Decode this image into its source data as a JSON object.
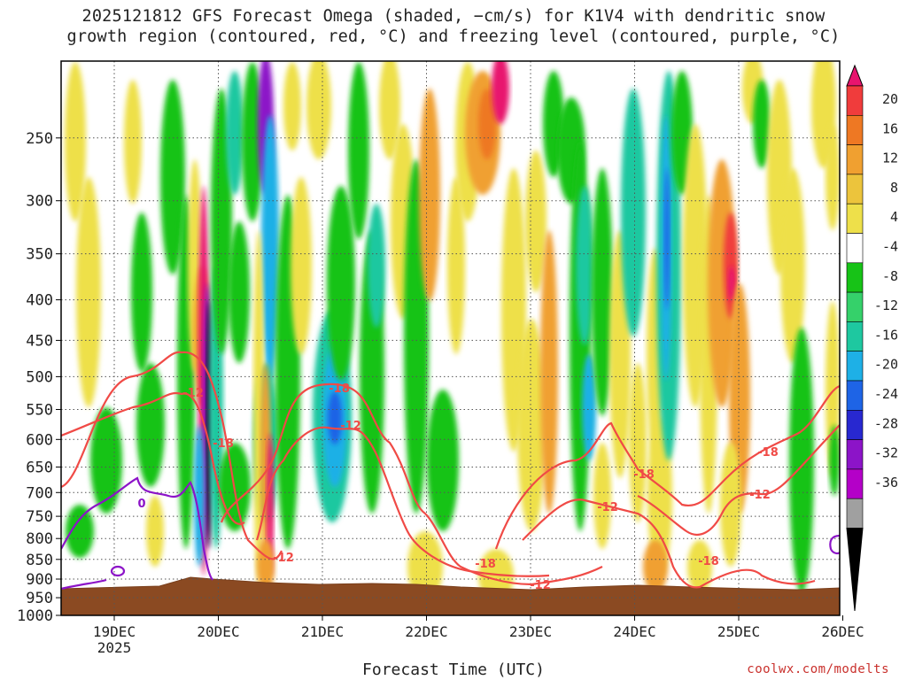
{
  "title_line1": "2025121812 GFS Forecast Omega (shaded, −cm/s) for K1V4 with dendritic snow",
  "title_line2": "growth region (contoured, red, °C) and freezing level (contoured, purple, °C)",
  "xlabel": "Forecast Time (UTC)",
  "credit": "coolwx.com/modelts",
  "chart_data": {
    "type": "heatmap",
    "yaxis": {
      "ticks": [
        250,
        300,
        350,
        400,
        450,
        500,
        550,
        600,
        650,
        700,
        750,
        800,
        850,
        900,
        950,
        1000
      ],
      "ylim": [
        1000,
        200
      ],
      "scale": "log"
    },
    "xaxis": {
      "ticks": [
        "19DEC\n2025",
        "20DEC",
        "21DEC",
        "22DEC",
        "23DEC",
        "24DEC",
        "25DEC",
        "26DEC"
      ]
    },
    "colorbar": {
      "labels": [
        "20",
        "16",
        "12",
        "8",
        "4",
        "-4",
        "-8",
        "-12",
        "-16",
        "-20",
        "-24",
        "-28",
        "-32",
        "-36"
      ],
      "colors": [
        "#e8146e",
        "#f03c3c",
        "#ee7823",
        "#f0a030",
        "#ecc43c",
        "#eee04a",
        "#ffffff",
        "#17c317",
        "#35d16a",
        "#1ec8a0",
        "#1eb0e6",
        "#1e64e6",
        "#2828d0",
        "#8c14c8",
        "#b400c8",
        "#a0a0a0",
        "#000000"
      ]
    },
    "contour_labels": [
      {
        "text": "-12",
        "color": "#f04a46"
      },
      {
        "text": "-18",
        "color": "#f04a46"
      },
      {
        "text": "-18",
        "color": "#f04a46"
      },
      {
        "text": "-12",
        "color": "#f04a46"
      },
      {
        "text": "-12",
        "color": "#f04a46"
      },
      {
        "text": "-18",
        "color": "#f04a46"
      },
      {
        "text": "-18",
        "color": "#f04a46"
      },
      {
        "text": "-12",
        "color": "#f04a46"
      },
      {
        "text": "-12",
        "color": "#f04a46"
      },
      {
        "text": "-18",
        "color": "#f04a46"
      },
      {
        "text": "-18",
        "color": "#f04a46"
      },
      {
        "text": "-12",
        "color": "#f04a46"
      },
      {
        "text": "0",
        "color": "#8c14c8"
      }
    ],
    "grid": "dotted"
  }
}
